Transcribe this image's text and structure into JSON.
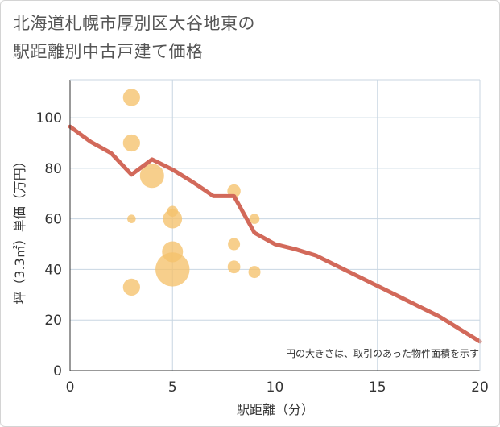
{
  "title_line1": "北海道札幌市厚別区大谷地東の",
  "title_line2": "駅距離別中古戸建て価格",
  "chart_data": {
    "type": "scatter",
    "xlabel": "駅距離（分）",
    "ylabel": "坪（3.3㎡）単価（万円）",
    "xlim": [
      0,
      20
    ],
    "ylim": [
      0,
      115
    ],
    "xticks": [
      0,
      5,
      10,
      15,
      20
    ],
    "yticks": [
      0,
      20,
      40,
      60,
      80,
      100
    ],
    "grid": true,
    "note": "円の大きさは、取引のあった物件面積を示す",
    "colors": {
      "bubble": "#f5c26b",
      "line": "#d2695a",
      "grid": "#c8d6e2"
    },
    "bubbles": [
      {
        "x": 3,
        "y": 108,
        "size": 2
      },
      {
        "x": 3,
        "y": 90,
        "size": 2
      },
      {
        "x": 3,
        "y": 60,
        "size": 0.5
      },
      {
        "x": 3,
        "y": 33,
        "size": 2
      },
      {
        "x": 4,
        "y": 77,
        "size": 4
      },
      {
        "x": 5,
        "y": 63,
        "size": 0.8
      },
      {
        "x": 5,
        "y": 60,
        "size": 2.5
      },
      {
        "x": 5,
        "y": 47,
        "size": 3
      },
      {
        "x": 5,
        "y": 40,
        "size": 8
      },
      {
        "x": 8,
        "y": 71,
        "size": 1.2
      },
      {
        "x": 8,
        "y": 50,
        "size": 1
      },
      {
        "x": 8,
        "y": 41,
        "size": 1.1
      },
      {
        "x": 9,
        "y": 60,
        "size": 0.7
      },
      {
        "x": 9,
        "y": 39,
        "size": 1
      }
    ],
    "trend": {
      "x": [
        0,
        1,
        2,
        3,
        4,
        5,
        6,
        7,
        8,
        9,
        10,
        11,
        12,
        13,
        14,
        15,
        16,
        17,
        18,
        19,
        20
      ],
      "y": [
        96.5,
        90.5,
        86,
        77.5,
        83.5,
        79.5,
        74.5,
        69,
        69,
        54.5,
        50,
        48,
        45.5,
        41.5,
        37.5,
        33.5,
        29.5,
        25.5,
        21.5,
        16.5,
        11.5
      ]
    }
  }
}
